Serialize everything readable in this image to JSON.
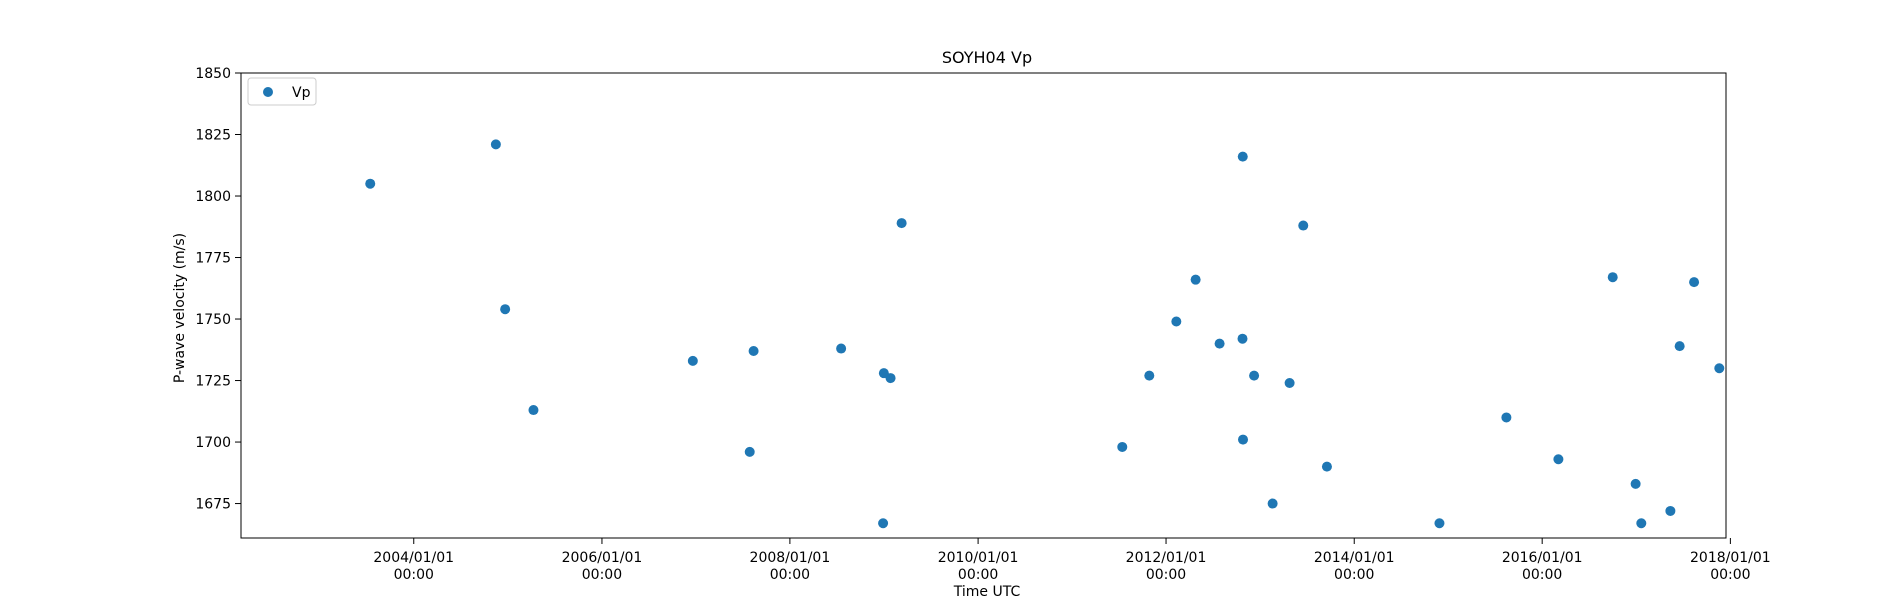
{
  "chart_data": {
    "type": "scatter",
    "title": "SOYH04 Vp",
    "xlabel": "Time UTC",
    "ylabel": "P-wave velocity (m/s)",
    "x_type": "date",
    "xlim": [
      "2002/03/01",
      "2017/12/15"
    ],
    "ylim": [
      1661,
      1850
    ],
    "x_ticks": [
      {
        "value": "2004/01/01",
        "label_line1": "2004/01/01",
        "label_line2": "00:00"
      },
      {
        "value": "2006/01/01",
        "label_line1": "2006/01/01",
        "label_line2": "00:00"
      },
      {
        "value": "2008/01/01",
        "label_line1": "2008/01/01",
        "label_line2": "00:00"
      },
      {
        "value": "2010/01/01",
        "label_line1": "2010/01/01",
        "label_line2": "00:00"
      },
      {
        "value": "2012/01/01",
        "label_line1": "2012/01/01",
        "label_line2": "00:00"
      },
      {
        "value": "2014/01/01",
        "label_line1": "2014/01/01",
        "label_line2": "00:00"
      },
      {
        "value": "2016/01/01",
        "label_line1": "2016/01/01",
        "label_line2": "00:00"
      },
      {
        "value": "2018/01/01",
        "label_line1": "2018/01/01",
        "label_line2": "00:00"
      }
    ],
    "y_ticks": [
      1675,
      1700,
      1725,
      1750,
      1775,
      1800,
      1825,
      1850
    ],
    "grid": false,
    "legend": {
      "position": "top-left"
    },
    "series": [
      {
        "name": "Vp",
        "color": "#1f77b4",
        "points": [
          {
            "x": "2003/07/16",
            "y": 1805
          },
          {
            "x": "2004/11/15",
            "y": 1821
          },
          {
            "x": "2004/12/21",
            "y": 1754
          },
          {
            "x": "2005/04/10",
            "y": 1713
          },
          {
            "x": "2006/12/20",
            "y": 1733
          },
          {
            "x": "2007/07/29",
            "y": 1696
          },
          {
            "x": "2007/08/13",
            "y": 1737
          },
          {
            "x": "2008/07/18",
            "y": 1738
          },
          {
            "x": "2008/12/28",
            "y": 1667
          },
          {
            "x": "2008/12/31",
            "y": 1728
          },
          {
            "x": "2009/01/26",
            "y": 1726
          },
          {
            "x": "2009/03/10",
            "y": 1789
          },
          {
            "x": "2011/07/15",
            "y": 1698
          },
          {
            "x": "2011/10/28",
            "y": 1727
          },
          {
            "x": "2012/02/10",
            "y": 1749
          },
          {
            "x": "2012/04/25",
            "y": 1766
          },
          {
            "x": "2012/07/27",
            "y": 1740
          },
          {
            "x": "2012/10/24",
            "y": 1742
          },
          {
            "x": "2012/10/25",
            "y": 1816
          },
          {
            "x": "2012/10/26",
            "y": 1701
          },
          {
            "x": "2012/12/08",
            "y": 1727
          },
          {
            "x": "2013/02/18",
            "y": 1675
          },
          {
            "x": "2013/04/25",
            "y": 1724
          },
          {
            "x": "2013/06/17",
            "y": 1788
          },
          {
            "x": "2013/09/17",
            "y": 1690
          },
          {
            "x": "2014/11/28",
            "y": 1667
          },
          {
            "x": "2015/08/15",
            "y": 1710
          },
          {
            "x": "2016/03/04",
            "y": 1693
          },
          {
            "x": "2016/10/01",
            "y": 1767
          },
          {
            "x": "2016/12/29",
            "y": 1683
          },
          {
            "x": "2017/01/20",
            "y": 1667
          },
          {
            "x": "2017/05/13",
            "y": 1672
          },
          {
            "x": "2017/06/18",
            "y": 1739
          },
          {
            "x": "2017/08/13",
            "y": 1765
          },
          {
            "x": "2017/11/19",
            "y": 1730
          }
        ]
      }
    ]
  }
}
